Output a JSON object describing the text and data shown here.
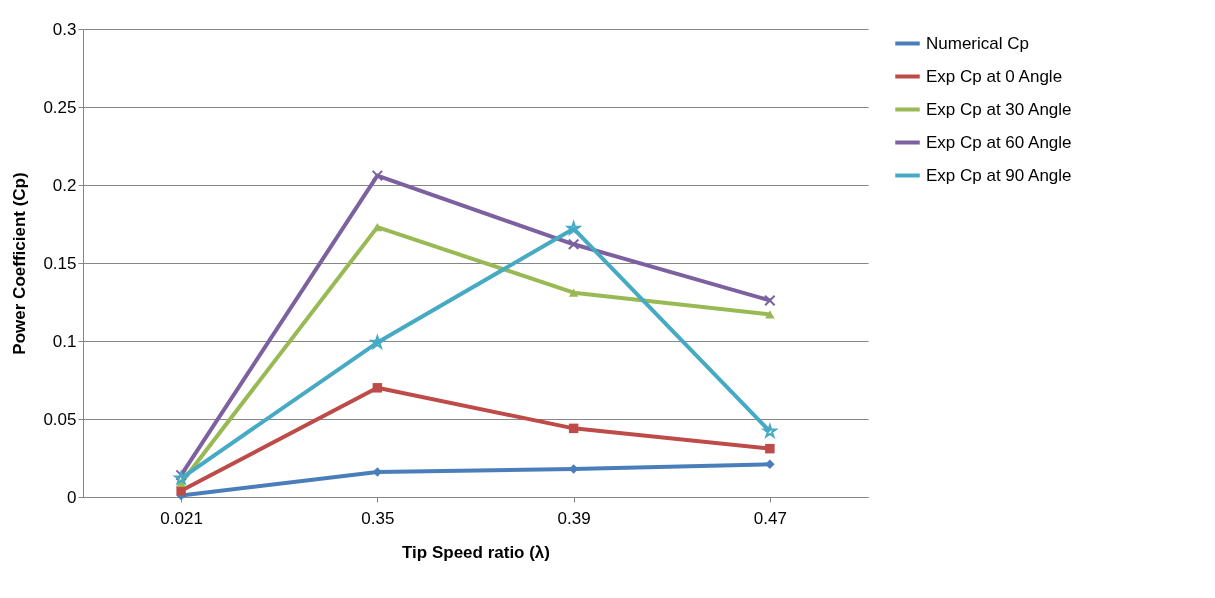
{
  "chart_data": {
    "type": "line",
    "xlabel": "Tip Speed ratio (λ)",
    "ylabel": "Power Coefficient (Cp)",
    "categories": [
      "0.021",
      "0.35",
      "0.39",
      "0.47"
    ],
    "series": [
      {
        "name": "Numerical Cp",
        "color": "#4a7ebb",
        "marker": "diamond",
        "values": [
          0.001,
          0.016,
          0.018,
          0.021
        ]
      },
      {
        "name": "Exp Cp at 0 Angle",
        "color": "#be4b48",
        "marker": "square",
        "values": [
          0.004,
          0.07,
          0.044,
          0.031
        ]
      },
      {
        "name": "Exp Cp at 30 Angle",
        "color": "#98b954",
        "marker": "triangle",
        "values": [
          0.009,
          0.173,
          0.131,
          0.117
        ]
      },
      {
        "name": "Exp Cp at 60 Angle",
        "color": "#7d60a0",
        "marker": "cross",
        "values": [
          0.014,
          0.206,
          0.162,
          0.126
        ]
      },
      {
        "name": "Exp Cp at 90 Angle",
        "color": "#46aac5",
        "marker": "star",
        "values": [
          0.012,
          0.099,
          0.172,
          0.042
        ]
      }
    ],
    "ylim": [
      0,
      0.3
    ],
    "yticks": [
      0,
      0.05,
      0.1,
      0.15,
      0.2,
      0.25,
      0.3
    ],
    "grid": "y",
    "legend": "right"
  }
}
